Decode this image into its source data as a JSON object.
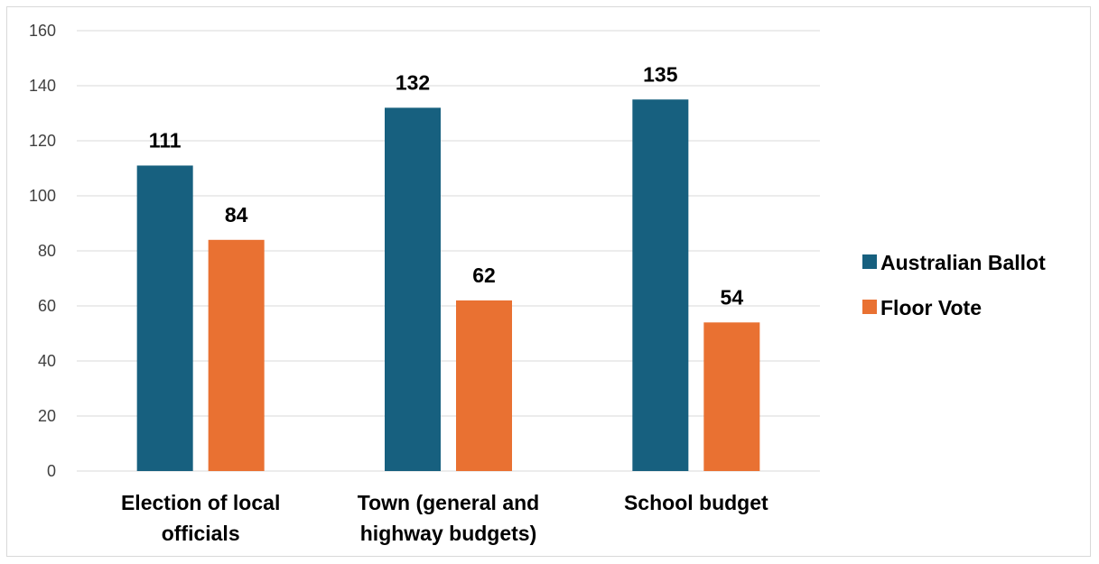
{
  "chart_data": {
    "type": "bar",
    "title": "",
    "xlabel": "",
    "ylabel": "",
    "categories": [
      [
        "Election of local",
        "officials"
      ],
      [
        "Town (general and",
        "highway budgets)"
      ],
      [
        "School budget"
      ]
    ],
    "series": [
      {
        "name": "Australian Ballot",
        "values": [
          111,
          132,
          135
        ],
        "color": "#17607f"
      },
      {
        "name": "Floor Vote",
        "values": [
          84,
          62,
          54
        ],
        "color": "#e97132"
      }
    ],
    "ylim": [
      0,
      160
    ],
    "yticks": [
      0,
      20,
      40,
      60,
      80,
      100,
      120,
      140,
      160
    ],
    "grid": true,
    "legend_position": "right",
    "data_labels": true
  }
}
